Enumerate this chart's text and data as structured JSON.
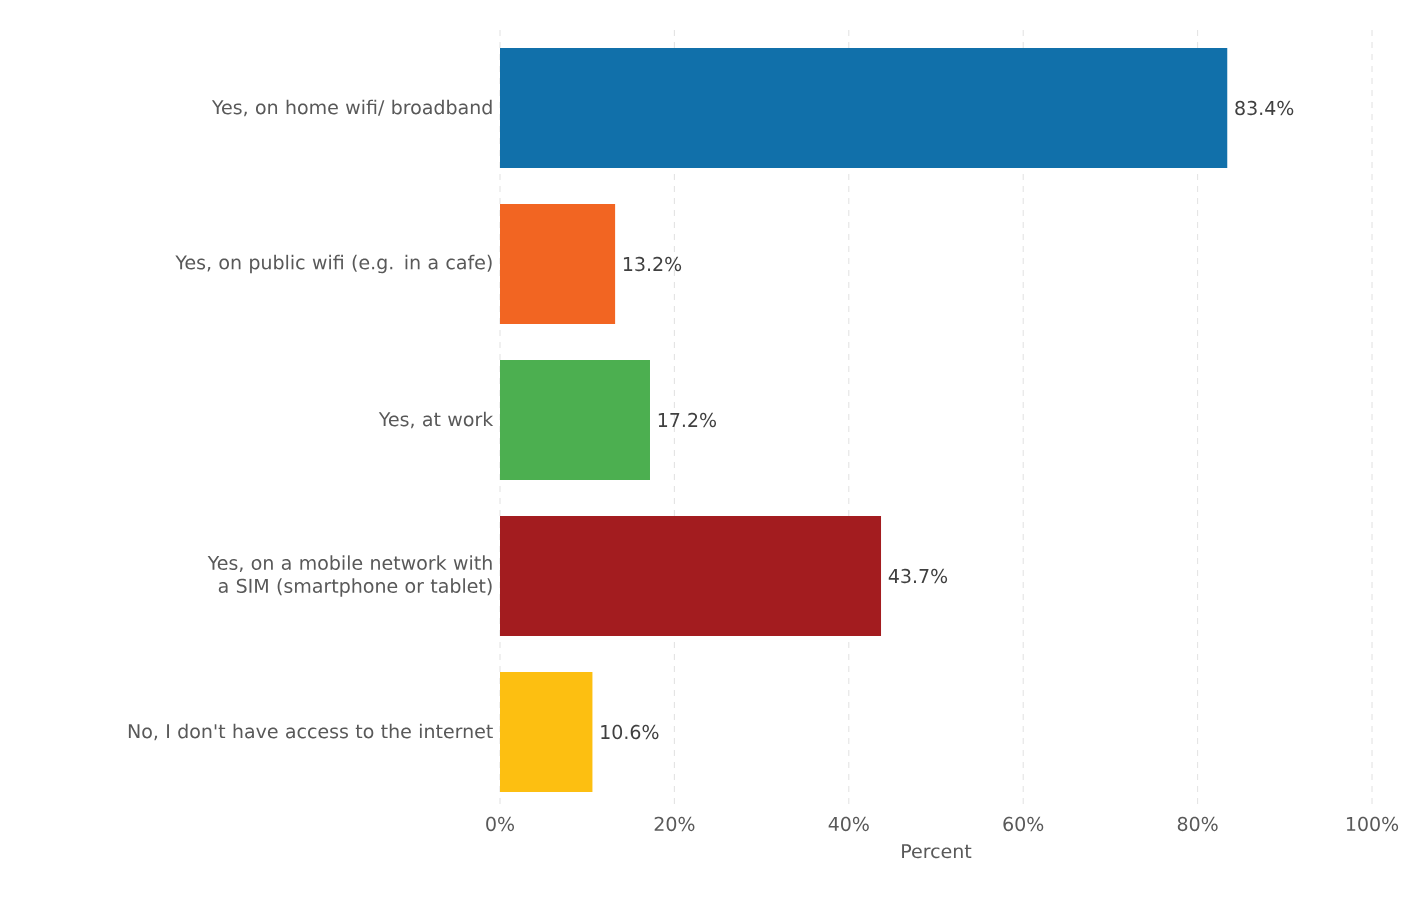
{
  "chart_data": {
    "type": "bar",
    "orientation": "horizontal",
    "xlabel": "Percent",
    "categories": [
      "Yes, on home wifi/ broadband",
      "Yes, on public wifi (e.g. in a cafe)",
      "Yes, at work",
      "Yes, on a mobile network with a SIM (smartphone or tablet)",
      "No, I don't have access to the internet"
    ],
    "values": [
      83.4,
      13.2,
      17.2,
      43.7,
      10.6
    ],
    "colors": [
      "#1170aa",
      "#f26522",
      "#4caf50",
      "#a31c1f",
      "#fdbf11"
    ],
    "value_labels": [
      "83.4%",
      "13.2%",
      "17.2%",
      "43.7%",
      "10.6%"
    ],
    "xlim": [
      0,
      100
    ],
    "xticks": [
      {
        "value": 0,
        "label": "0%"
      },
      {
        "value": 20,
        "label": "20%"
      },
      {
        "value": 40,
        "label": "40%"
      },
      {
        "value": 60,
        "label": "60%"
      },
      {
        "value": 80,
        "label": "80%"
      },
      {
        "value": 100,
        "label": "100%"
      }
    ],
    "grid": "x"
  }
}
